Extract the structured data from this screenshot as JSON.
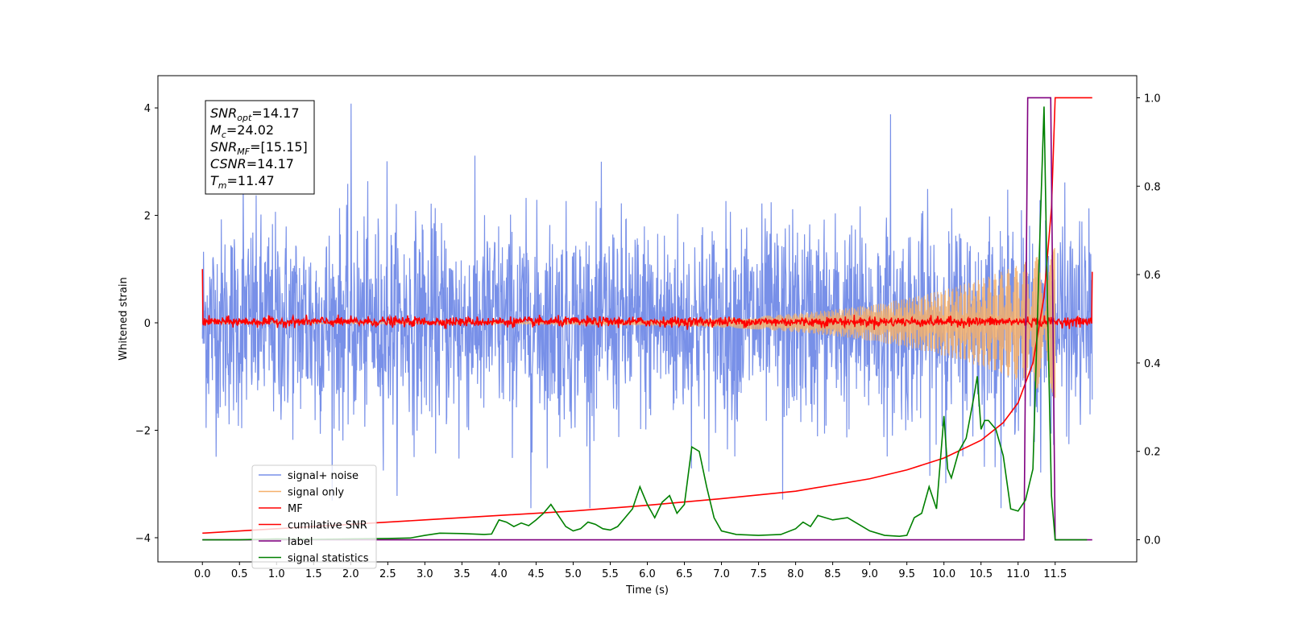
{
  "chart_data": {
    "type": "line",
    "title": "",
    "xlabel": "Time (s)",
    "ylabel": "Whitened strain",
    "xlim": [
      -0.6,
      12.6
    ],
    "ylim": [
      -4.45,
      4.6
    ],
    "y2lim": [
      -0.05,
      1.05
    ],
    "grid": false,
    "legend_position": "lower-left",
    "x_ticks": [
      "0.0",
      "0.5",
      "1.0",
      "1.5",
      "2.0",
      "2.5",
      "3.0",
      "3.5",
      "4.0",
      "4.5",
      "5.0",
      "5.5",
      "6.0",
      "6.5",
      "7.0",
      "7.5",
      "8.0",
      "8.5",
      "9.0",
      "9.5",
      "10.0",
      "10.5",
      "11.0",
      "11.5"
    ],
    "y_ticks": [
      "−4",
      "−2",
      "0",
      "2",
      "4"
    ],
    "y2_ticks": [
      "0.0",
      "0.2",
      "0.4",
      "0.6",
      "0.8",
      "1.0"
    ],
    "info_box": [
      {
        "name": "SNR",
        "sub": "opt",
        "value": "=14.17"
      },
      {
        "name": "M",
        "sub": "c",
        "value": "=24.02"
      },
      {
        "name": "SNR",
        "sub": "MF",
        "value": "=[15.15]"
      },
      {
        "name": "CSNR",
        "sub": "",
        "value": "=14.17"
      },
      {
        "name": "T",
        "sub": "m",
        "value": "=11.47"
      }
    ],
    "series": [
      {
        "name": "signal+ noise",
        "color": "#7890e8",
        "axis": "left",
        "description_values": {
          "t_start": 0.0,
          "t_end": 12.0,
          "typical_range": [
            -2.2,
            2.3
          ],
          "extremes": [
            -3.45,
            4.15
          ]
        }
      },
      {
        "name": "signal only",
        "color": "#f5b06a",
        "axis": "left",
        "description_values": {
          "t_start": 0.0,
          "t_end": 12.0,
          "envelope_at_end": 1.4
        }
      },
      {
        "name": "MF",
        "color": "#ff0000",
        "axis": "left",
        "description_values": {
          "t_start": 0.0,
          "t_end": 12.0,
          "start_value": 1.0,
          "end_value": 0.95,
          "typical_range": [
            -0.08,
            0.15
          ]
        }
      },
      {
        "name": "cumilative SNR",
        "color": "#ff0000",
        "axis": "right",
        "x": [
          0.0,
          1.0,
          2.0,
          3.0,
          4.0,
          5.0,
          6.0,
          7.0,
          8.0,
          9.0,
          9.5,
          10.0,
          10.5,
          10.8,
          11.0,
          11.2,
          11.35,
          11.45,
          11.5,
          12.0
        ],
        "y": [
          0.015,
          0.025,
          0.035,
          0.045,
          0.055,
          0.065,
          0.078,
          0.093,
          0.11,
          0.138,
          0.158,
          0.185,
          0.225,
          0.265,
          0.31,
          0.4,
          0.55,
          0.75,
          1.0,
          1.0
        ]
      },
      {
        "name": "label",
        "color": "#800080",
        "axis": "right",
        "x": [
          0.0,
          11.08,
          11.13,
          11.44,
          11.5,
          12.0
        ],
        "y": [
          0.0,
          0.0,
          1.0,
          1.0,
          0.0,
          0.0
        ]
      },
      {
        "name": "signal statistics",
        "color": "#008000",
        "axis": "right",
        "x": [
          0.0,
          0.5,
          1.0,
          1.5,
          2.0,
          2.5,
          2.8,
          3.0,
          3.2,
          3.5,
          3.8,
          3.9,
          4.0,
          4.1,
          4.2,
          4.3,
          4.4,
          4.5,
          4.6,
          4.7,
          4.8,
          4.9,
          5.0,
          5.1,
          5.2,
          5.3,
          5.4,
          5.5,
          5.6,
          5.7,
          5.8,
          5.9,
          6.0,
          6.1,
          6.2,
          6.3,
          6.4,
          6.5,
          6.6,
          6.7,
          6.8,
          6.9,
          7.0,
          7.2,
          7.5,
          7.8,
          8.0,
          8.1,
          8.2,
          8.3,
          8.5,
          8.7,
          8.8,
          9.0,
          9.2,
          9.4,
          9.5,
          9.6,
          9.7,
          9.8,
          9.9,
          10.0,
          10.05,
          10.1,
          10.2,
          10.3,
          10.4,
          10.45,
          10.5,
          10.55,
          10.6,
          10.7,
          10.8,
          10.9,
          11.0,
          11.1,
          11.2,
          11.3,
          11.35,
          11.4,
          11.45,
          11.5,
          11.6,
          11.8,
          11.93
        ],
        "y": [
          0.0,
          0.0,
          0.002,
          0.001,
          0.002,
          0.003,
          0.004,
          0.01,
          0.015,
          0.014,
          0.012,
          0.013,
          0.045,
          0.04,
          0.03,
          0.038,
          0.032,
          0.045,
          0.06,
          0.08,
          0.055,
          0.03,
          0.02,
          0.025,
          0.04,
          0.035,
          0.025,
          0.022,
          0.03,
          0.05,
          0.07,
          0.12,
          0.08,
          0.05,
          0.085,
          0.1,
          0.06,
          0.08,
          0.21,
          0.2,
          0.12,
          0.05,
          0.02,
          0.012,
          0.01,
          0.012,
          0.025,
          0.04,
          0.03,
          0.055,
          0.045,
          0.05,
          0.04,
          0.02,
          0.01,
          0.008,
          0.01,
          0.05,
          0.06,
          0.12,
          0.07,
          0.28,
          0.16,
          0.14,
          0.2,
          0.23,
          0.32,
          0.37,
          0.25,
          0.27,
          0.27,
          0.25,
          0.19,
          0.07,
          0.065,
          0.09,
          0.16,
          0.72,
          0.98,
          0.5,
          0.1,
          0.0,
          0.0,
          0.0,
          0.0
        ]
      }
    ]
  }
}
